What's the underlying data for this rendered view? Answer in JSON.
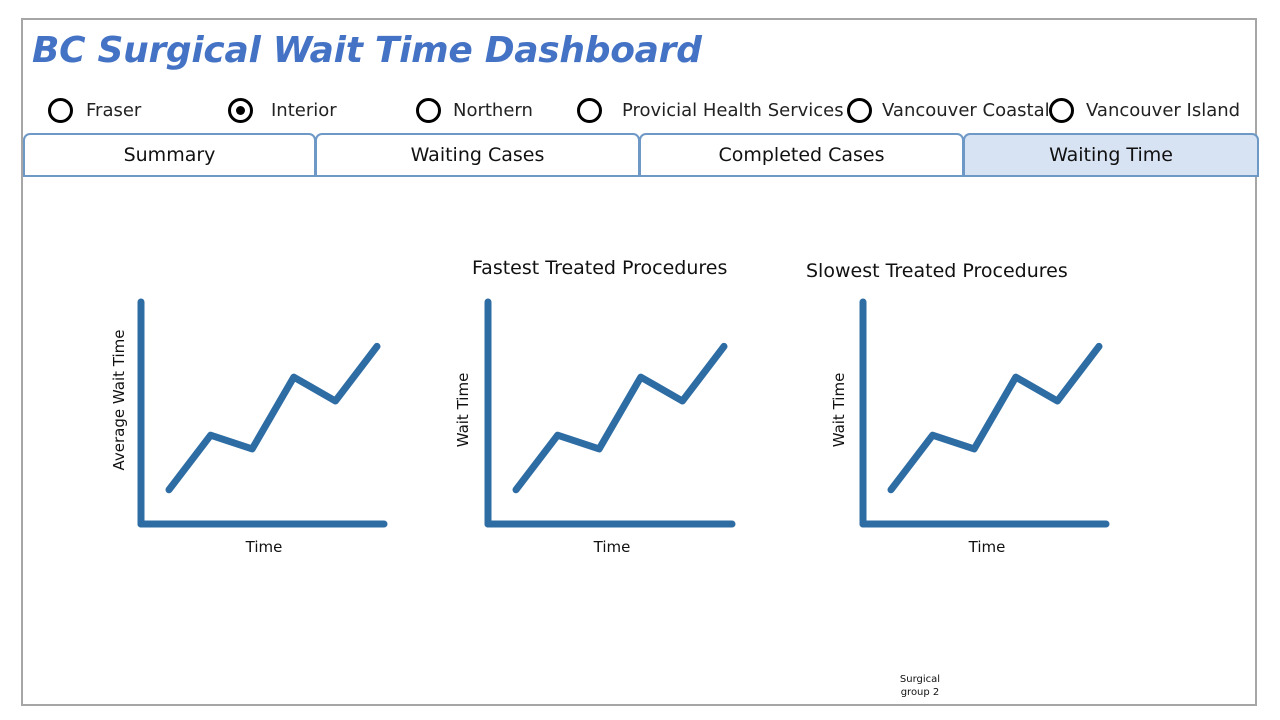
{
  "header": {
    "title": "BC Surgical Wait Time Dashboard"
  },
  "regions": [
    {
      "label": "Fraser",
      "checked": false
    },
    {
      "label": "Interior",
      "checked": true
    },
    {
      "label": "Northern",
      "checked": false
    },
    {
      "label": "Provicial Health Services",
      "checked": false
    },
    {
      "label": "Vancouver Coastal",
      "checked": false
    },
    {
      "label": "Vancouver Island",
      "checked": false
    }
  ],
  "tabs": [
    {
      "label": "Summary",
      "active": false
    },
    {
      "label": "Waiting Cases",
      "active": false
    },
    {
      "label": "Completed Cases",
      "active": false
    },
    {
      "label": "Waiting Time",
      "active": true
    }
  ],
  "colors": {
    "accent": "#4472c4",
    "line": "#2e6ca4",
    "tab_border": "#6e99c7",
    "tab_active": "#d7e2f3",
    "frame": "#a6a6a6"
  },
  "chart_data": [
    {
      "type": "line",
      "title": "",
      "xlabel": "Time",
      "ylabel": "Average Wait Time",
      "x": [
        1,
        2,
        3,
        4,
        5,
        6
      ],
      "series": [
        {
          "values": [
            1,
            2.6,
            2.2,
            4.3,
            3.6,
            5.2
          ]
        }
      ],
      "ylim": [
        0,
        6.5
      ]
    },
    {
      "type": "line",
      "title": "Fastest Treated Procedures",
      "xlabel": "Time",
      "ylabel": "Wait Time",
      "x": [
        1,
        2,
        3,
        4,
        5,
        6
      ],
      "series": [
        {
          "values": [
            1,
            2.6,
            2.2,
            4.3,
            3.6,
            5.2
          ]
        }
      ],
      "ylim": [
        0,
        6.5
      ]
    },
    {
      "type": "line",
      "title": "Slowest Treated Procedures",
      "xlabel": "Time",
      "ylabel": "Wait Time",
      "x": [
        1,
        2,
        3,
        4,
        5,
        6
      ],
      "series": [
        {
          "values": [
            1,
            2.6,
            2.2,
            4.3,
            3.6,
            5.2
          ]
        }
      ],
      "ylim": [
        0,
        6.5
      ]
    }
  ],
  "footer": {
    "note_line1": "Surgical",
    "note_line2": "group 2"
  }
}
